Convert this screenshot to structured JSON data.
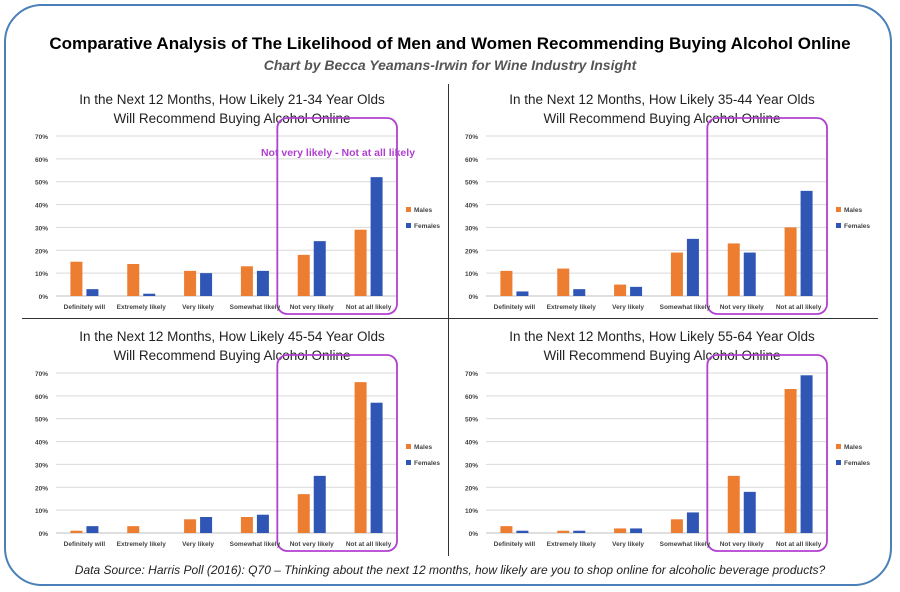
{
  "title": "Comparative Analysis of The Likelihood of Men and Women Recommending Buying Alcohol Online",
  "subtitle": "Chart by Becca Yeamans-Irwin for Wine Industry Insight",
  "footer": "Data Source: Harris Poll (2016): Q70 – Thinking about the next 12 months, how likely are you to shop online for alcoholic beverage products?",
  "colors": {
    "males": "#ed7d31",
    "females": "#2f55b5",
    "highlight": "#b040d0",
    "grid": "#d9d9d9"
  },
  "panels": [
    {
      "title_line1": "In the Next 12 Months, How Likely 21-34 Year Olds",
      "title_line2": "Will Recommend Buying Alcohol Online",
      "highlight_label": "Not very likely - Not at all likely",
      "legend": [
        "Males",
        "Females"
      ]
    },
    {
      "title_line1": "In the Next 12 Months, How Likely 35-44 Year Olds",
      "title_line2": "Will Recommend Buying Alcohol Online",
      "legend": [
        "Males",
        "Females"
      ]
    },
    {
      "title_line1": "In the Next 12 Months, How Likely 45-54 Year Olds",
      "title_line2": "Will Recommend Buying Alcohol Online",
      "legend": [
        "Males",
        "Females"
      ]
    },
    {
      "title_line1": "In the Next 12 Months, How Likely 55-64 Year Olds",
      "title_line2": "Will Recommend Buying Alcohol Online",
      "legend": [
        "Males",
        "Females"
      ]
    }
  ],
  "chart_data": [
    {
      "type": "bar",
      "title": "In the Next 12 Months, How Likely 21-34 Year Olds Will Recommend Buying Alcohol Online",
      "categories": [
        "Definitely will",
        "Extremely likely",
        "Very likely",
        "Somewhat likely",
        "Not very likely",
        "Not at all likely"
      ],
      "series": [
        {
          "name": "Males",
          "values": [
            15,
            14,
            11,
            13,
            18,
            29
          ]
        },
        {
          "name": "Females",
          "values": [
            3,
            1,
            10,
            11,
            24,
            52
          ]
        }
      ],
      "ylim": [
        0,
        70
      ],
      "yticks": [
        "0%",
        "10%",
        "20%",
        "30%",
        "40%",
        "50%",
        "60%",
        "70%"
      ],
      "legend_position": "right",
      "annotation": "Not very likely - Not at all likely"
    },
    {
      "type": "bar",
      "title": "In the Next 12 Months, How Likely 35-44 Year Olds Will Recommend Buying Alcohol Online",
      "categories": [
        "Definitely will",
        "Extremely likely",
        "Very likely",
        "Somewhat likely",
        "Not very likely",
        "Not at all likely"
      ],
      "series": [
        {
          "name": "Males",
          "values": [
            11,
            12,
            5,
            19,
            23,
            30
          ]
        },
        {
          "name": "Females",
          "values": [
            2,
            3,
            4,
            25,
            19,
            46
          ]
        }
      ],
      "ylim": [
        0,
        70
      ],
      "yticks": [
        "0%",
        "10%",
        "20%",
        "30%",
        "40%",
        "50%",
        "60%",
        "70%"
      ],
      "legend_position": "right"
    },
    {
      "type": "bar",
      "title": "In the Next 12 Months, How Likely 45-54 Year Olds Will Recommend Buying Alcohol Online",
      "categories": [
        "Definitely will",
        "Extremely likely",
        "Very likely",
        "Somewhat likely",
        "Not very likely",
        "Not at all likely"
      ],
      "series": [
        {
          "name": "Males",
          "values": [
            1,
            3,
            6,
            7,
            17,
            66
          ]
        },
        {
          "name": "Females",
          "values": [
            3,
            0,
            7,
            8,
            25,
            57
          ]
        }
      ],
      "ylim": [
        0,
        70
      ],
      "yticks": [
        "0%",
        "10%",
        "20%",
        "30%",
        "40%",
        "50%",
        "60%",
        "70%"
      ],
      "legend_position": "right"
    },
    {
      "type": "bar",
      "title": "In the Next 12 Months, How Likely 55-64 Year Olds Will Recommend Buying Alcohol Online",
      "categories": [
        "Definitely will",
        "Extremely likely",
        "Very likely",
        "Somewhat likely",
        "Not very likely",
        "Not at all likely"
      ],
      "series": [
        {
          "name": "Males",
          "values": [
            3,
            1,
            2,
            6,
            25,
            63
          ]
        },
        {
          "name": "Females",
          "values": [
            1,
            1,
            2,
            9,
            18,
            69
          ]
        }
      ],
      "ylim": [
        0,
        70
      ],
      "yticks": [
        "0%",
        "10%",
        "20%",
        "30%",
        "40%",
        "50%",
        "60%",
        "70%"
      ],
      "legend_position": "right"
    }
  ]
}
